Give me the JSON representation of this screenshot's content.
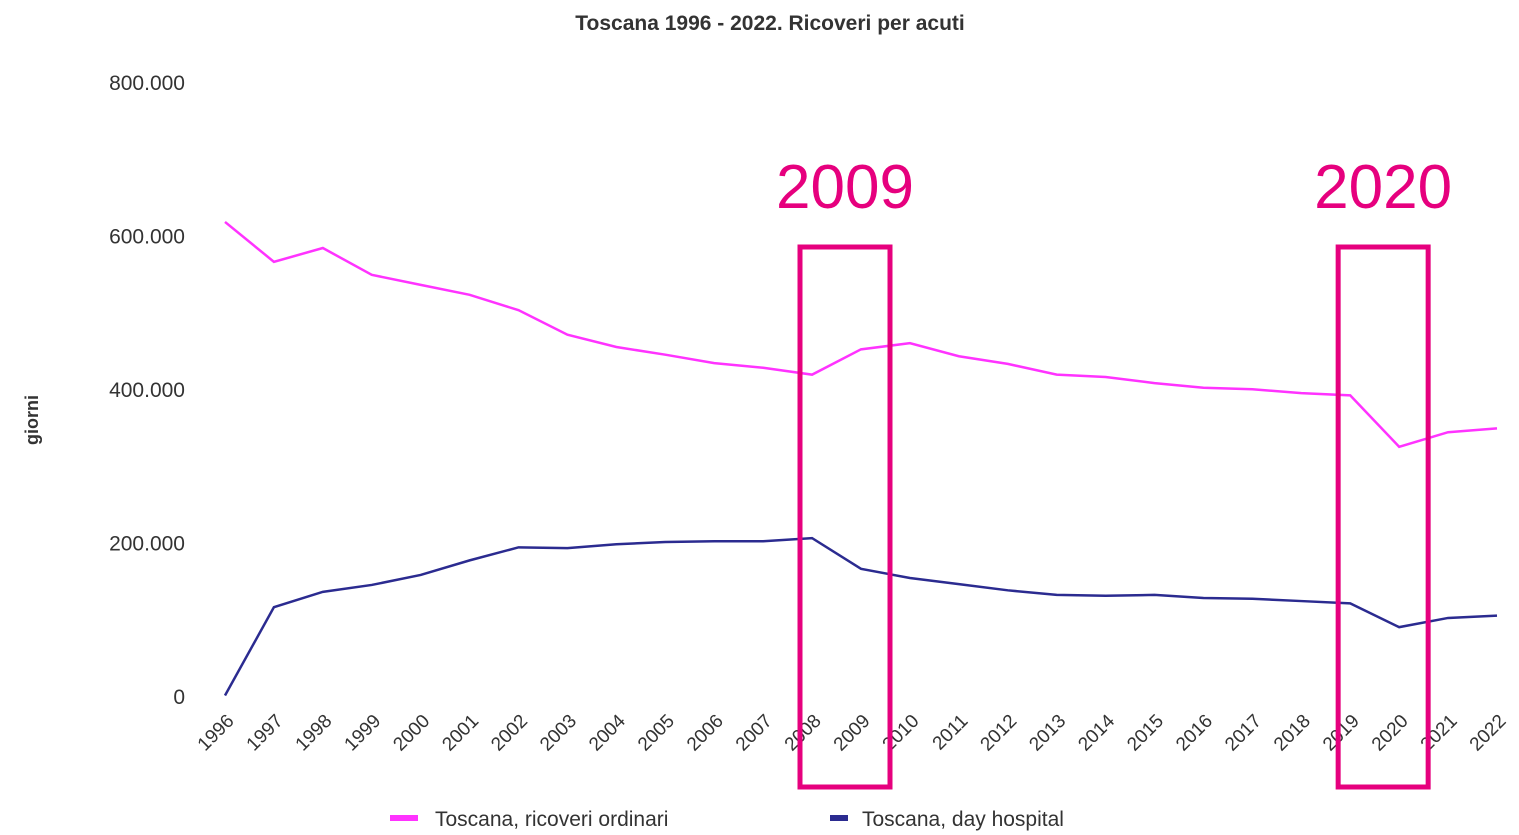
{
  "chart_data": {
    "type": "line",
    "title": "Toscana 1996 - 2022. Ricoveri per acuti",
    "y_label": "giorni",
    "categories": [
      "1996",
      "1997",
      "1998",
      "1999",
      "2000",
      "2001",
      "2002",
      "2003",
      "2004",
      "2005",
      "2006",
      "2007",
      "2008",
      "2009",
      "2010",
      "2011",
      "2012",
      "2013",
      "2014",
      "2015",
      "2016",
      "2017",
      "2018",
      "2019",
      "2020",
      "2021",
      "2022"
    ],
    "series": [
      {
        "name": "Toscana, ricoveri ordinari",
        "color": "#ff33ff",
        "values": [
          619000,
          567000,
          585000,
          550000,
          537000,
          524000,
          504000,
          472000,
          456000,
          446000,
          435000,
          429000,
          420000,
          453000,
          461000,
          444000,
          434000,
          420000,
          417000,
          409000,
          403000,
          401000,
          396000,
          393000,
          326000,
          345000,
          350000
        ]
      },
      {
        "name": "Toscana, day hospital",
        "color": "#2b2b90",
        "values": [
          2000,
          117000,
          137000,
          146000,
          159000,
          178000,
          195000,
          194000,
          199000,
          202000,
          203000,
          203000,
          207000,
          167000,
          155000,
          147000,
          139000,
          133000,
          132000,
          133000,
          129000,
          128000,
          125000,
          122000,
          91000,
          103000,
          106000
        ]
      }
    ],
    "ylim": [
      0,
      800000
    ],
    "yticks": [
      0,
      {
        "value": 200000,
        "label": "200.000"
      },
      {
        "value": 400000,
        "label": "400.000"
      },
      {
        "value": 600000,
        "label": "600.000"
      },
      {
        "value": 800000,
        "label": "800.000"
      }
    ],
    "annotations": [
      "2009",
      "2020"
    ],
    "annotation_color": "#e6007e"
  }
}
